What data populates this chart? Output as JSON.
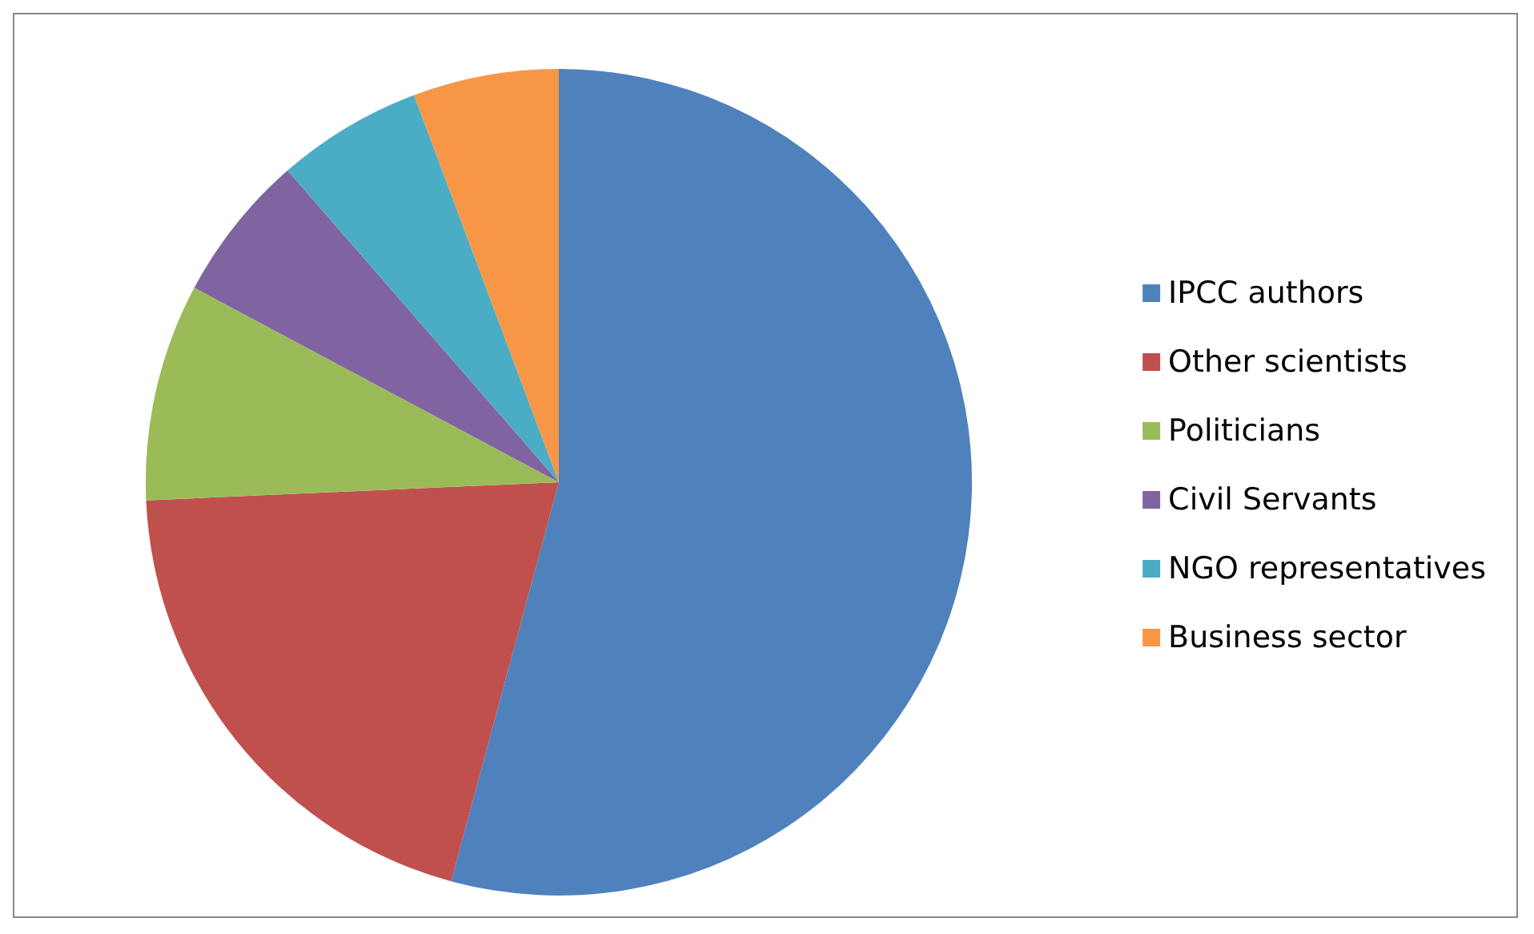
{
  "chart_data": {
    "type": "pie",
    "categories": [
      "IPCC authors",
      "Other scientists",
      "Politicians",
      "Civil Servants",
      "NGO representatives",
      "Business sector"
    ],
    "values": [
      54.2,
      20.1,
      8.5,
      5.8,
      5.7,
      5.7
    ],
    "colors": [
      "#4f81bd",
      "#c0504d",
      "#9bbb59",
      "#8064a2",
      "#4bacc6",
      "#f79646"
    ],
    "legend": "right"
  }
}
